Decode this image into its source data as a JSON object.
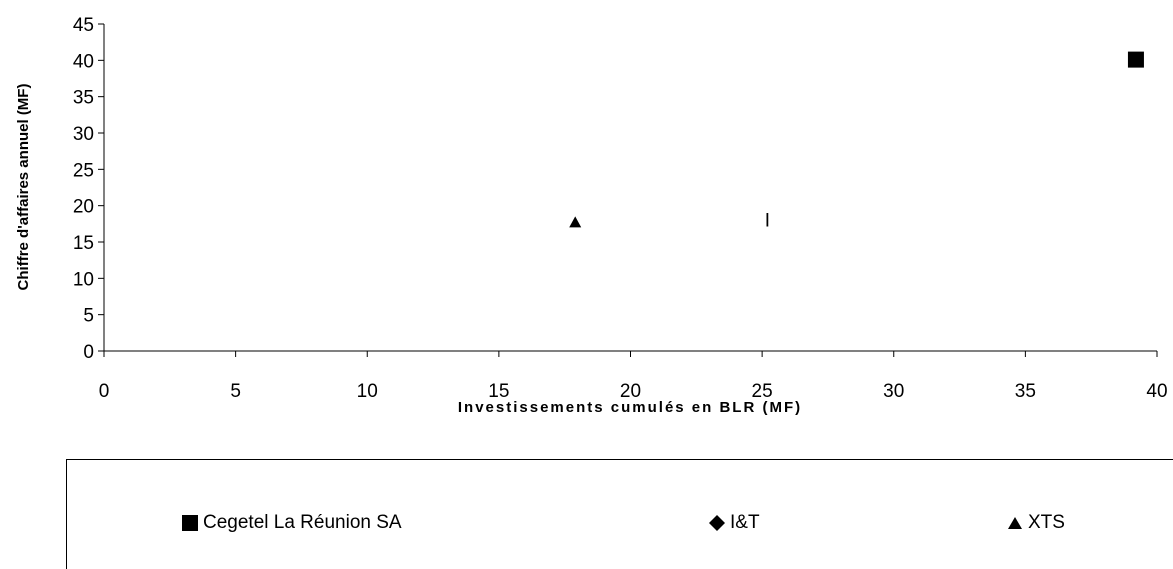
{
  "chart_data": {
    "type": "scatter",
    "title": "",
    "xlabel": "Investissements cumulés en BLR (MF)",
    "ylabel": "Chiffre d'affaires annuel (MF)",
    "xlim": [
      0,
      40
    ],
    "ylim": [
      0,
      45
    ],
    "xticks": [
      "0",
      "5",
      "10",
      "15",
      "20",
      "25",
      "30",
      "35",
      "40"
    ],
    "yticks": [
      "0",
      "5",
      "10",
      "15",
      "20",
      "25",
      "30",
      "35",
      "40",
      "45"
    ],
    "grid": false,
    "legend_position": "bottom",
    "series": [
      {
        "name": "Cegetel La Réunion SA",
        "marker": "square",
        "color": "#000000",
        "points": [
          {
            "x": 39.2,
            "y": 40.1
          }
        ]
      },
      {
        "name": "I&T",
        "marker": "diamond",
        "color": "#000000",
        "points": []
      },
      {
        "name": "XTS",
        "marker": "triangle",
        "color": "#000000",
        "points": [
          {
            "x": 17.9,
            "y": 17.7
          }
        ]
      }
    ],
    "annotations": [
      {
        "text": "I",
        "x": 25.2,
        "y": 18.4
      }
    ]
  }
}
